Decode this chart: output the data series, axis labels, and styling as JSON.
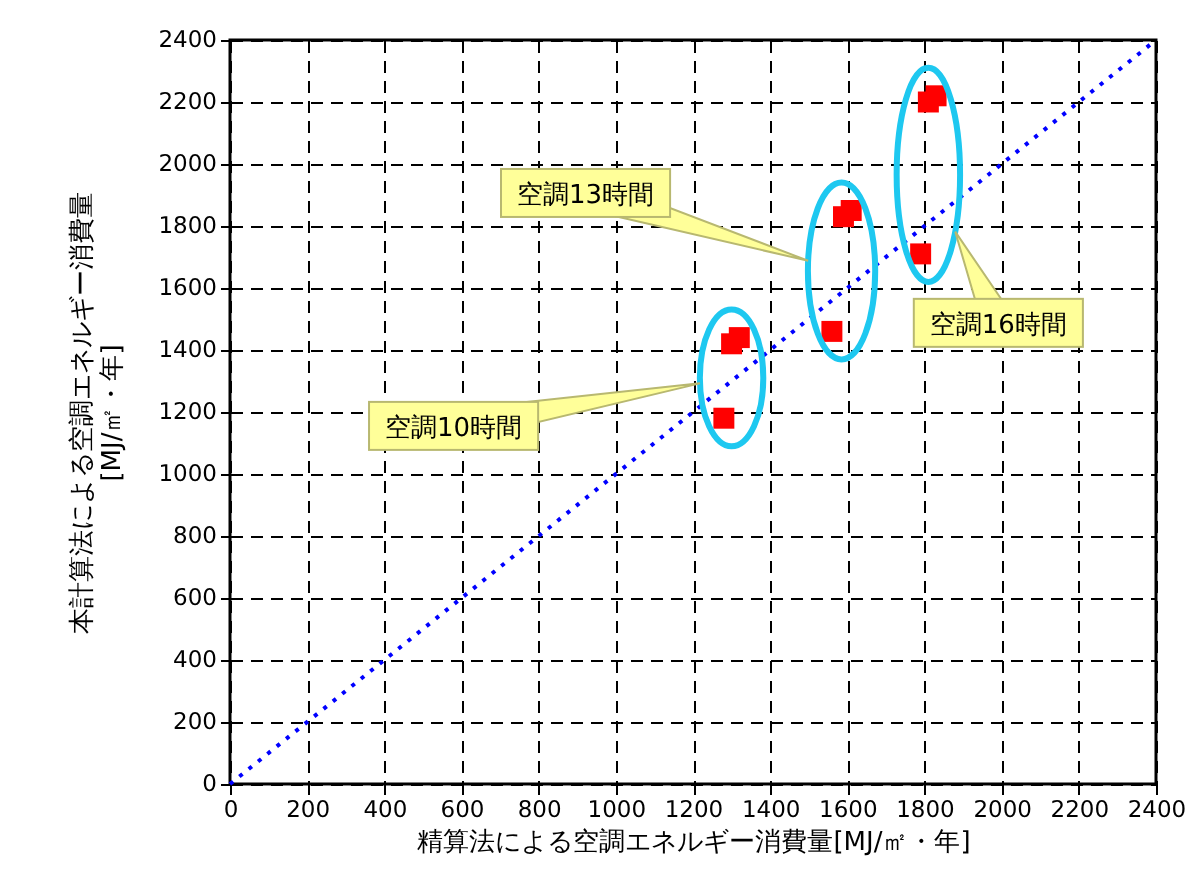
{
  "chart_data": {
    "type": "scatter",
    "xlabel": "精算法による空調エネルギー消費量[MJ/㎡・年]",
    "ylabel": "本計算法による空調エネルギー消費量\n[MJ/㎡・年]",
    "xlim": [
      0,
      2400
    ],
    "ylim": [
      0,
      2400
    ],
    "xticks": [
      0,
      200,
      400,
      600,
      800,
      1000,
      1200,
      1400,
      1600,
      1800,
      2000,
      2200,
      2400
    ],
    "yticks": [
      0,
      200,
      400,
      600,
      800,
      1000,
      1200,
      1400,
      1600,
      1800,
      2000,
      2200,
      2400
    ],
    "grid": true,
    "annotations": [
      "空調10時間",
      "空調13時間",
      "空調16時間"
    ],
    "series": [
      {
        "marker": "square",
        "color": "#ff0000",
        "x": [
          1280,
          1300,
          1320,
          1560,
          1590,
          1610,
          1790,
          1810,
          1830
        ],
        "values": [
          1180,
          1420,
          1440,
          1460,
          1830,
          1850,
          1710,
          2200,
          2220
        ]
      },
      {
        "type": "line",
        "color": "#0000ff",
        "line_style": "dotted",
        "x": [
          0,
          2400
        ],
        "values": [
          0,
          2400
        ]
      }
    ]
  }
}
